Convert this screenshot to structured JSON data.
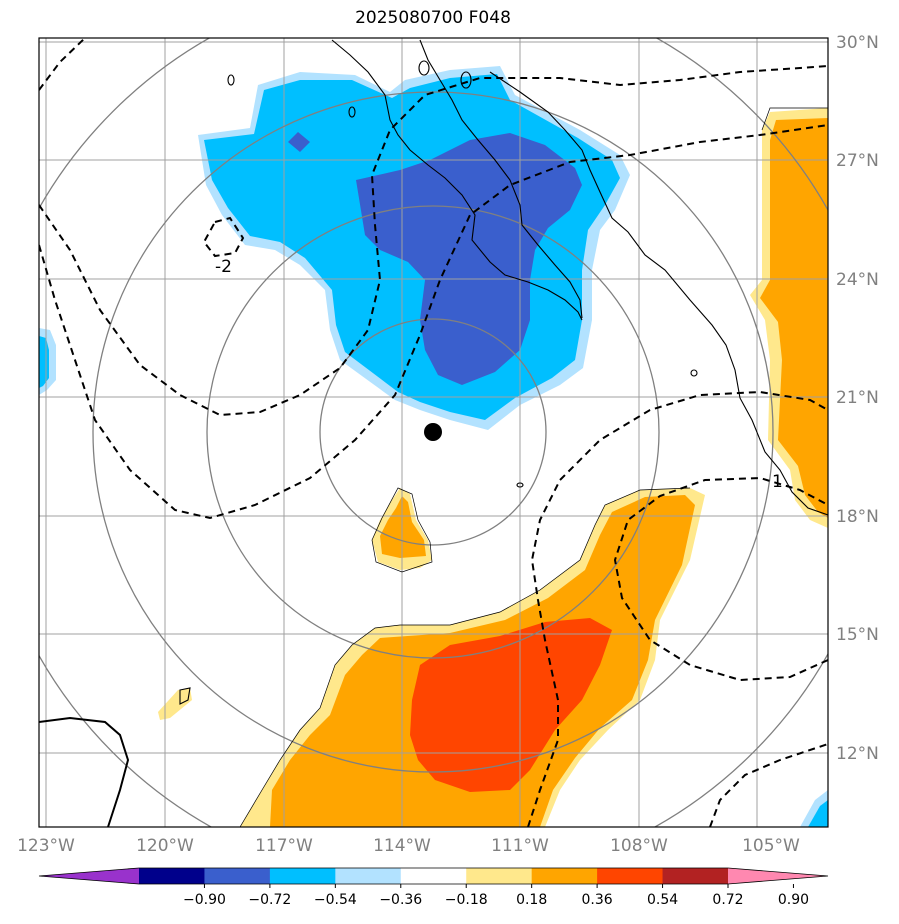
{
  "title": "2025080700 F048",
  "map": {
    "lon_ticks": [
      "123°W",
      "120°W",
      "117°W",
      "114°W",
      "111°W",
      "108°W",
      "105°W"
    ],
    "lat_ticks": [
      "30°N",
      "27°N",
      "24°N",
      "21°N",
      "18°N",
      "15°N",
      "12°N"
    ],
    "contour_labels": [
      "-2",
      "1"
    ],
    "storm_center": {
      "lon": "113.2°W",
      "lat": "20.2°N"
    }
  },
  "colorbar": {
    "ticks": [
      "−0.90",
      "−0.72",
      "−0.54",
      "−0.36",
      "−0.18",
      "0.18",
      "0.36",
      "0.54",
      "0.72",
      "0.90"
    ],
    "colors": [
      "#9932cc",
      "#00008b",
      "#3a5fcd",
      "#00bfff",
      "#b2e2ff",
      "#ffffff",
      "#ffe88c",
      "#ffa500",
      "#ff4500",
      "#b22222",
      "#ff88b0"
    ]
  },
  "colors": {
    "deep_blue": "#3a5fcd",
    "blue": "#00bfff",
    "light_blue": "#b2e2ff",
    "yellow": "#ffe88c",
    "orange": "#ffa500",
    "red_orange": "#ff4500",
    "grid": "#a0a0a0",
    "rings": "#808080"
  }
}
